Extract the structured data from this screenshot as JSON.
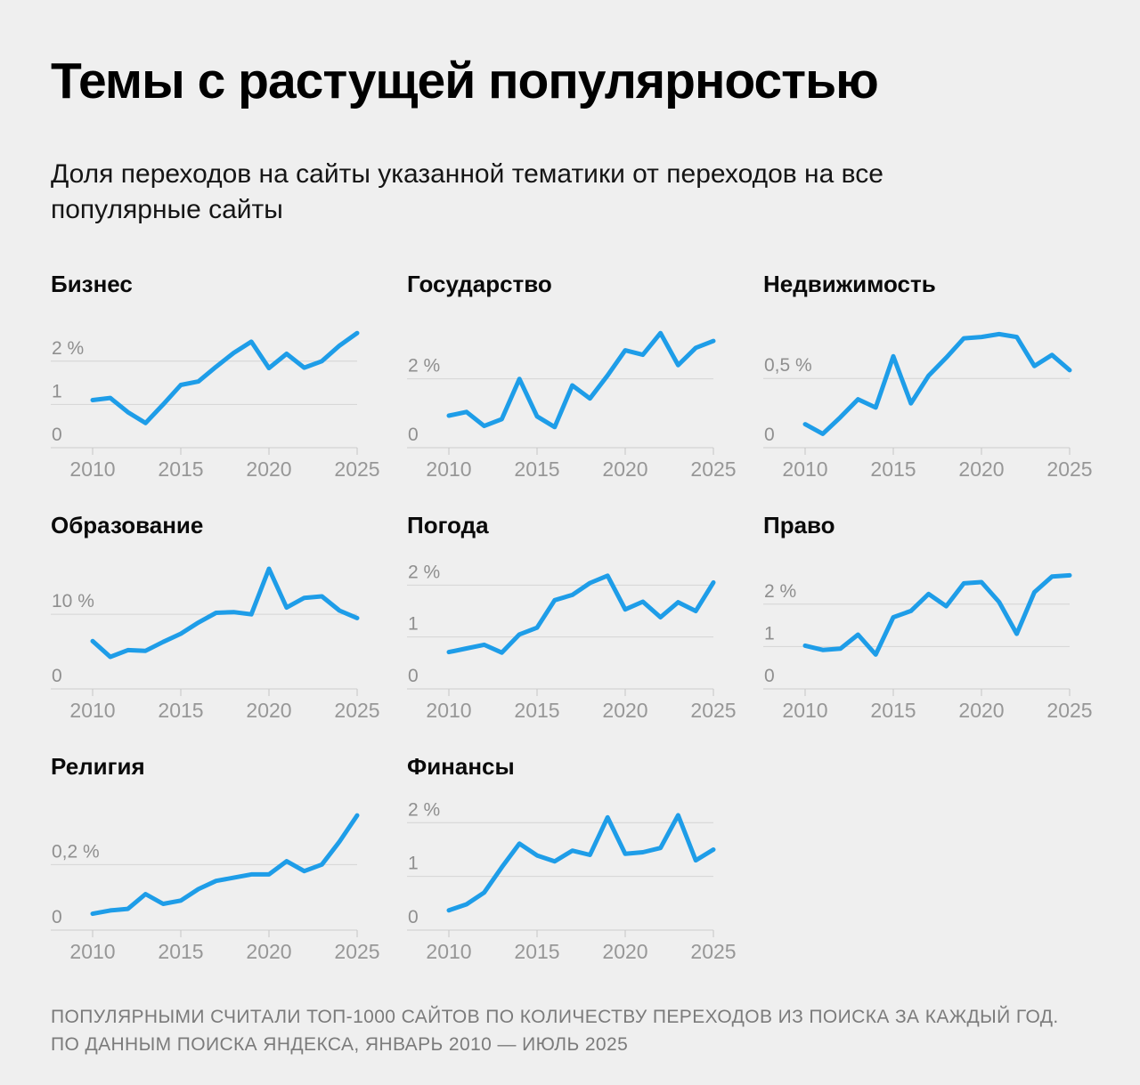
{
  "header": {
    "title": "Темы с растущей популярностью",
    "subtitle": "Доля переходов на сайты указанной тематики от переходов на все популярные сайты"
  },
  "footer": {
    "note": "ПОПУЛЯРНЫМИ СЧИТАЛИ ТОП-1000 САЙТОВ ПО КОЛИЧЕСТВУ ПЕРЕХОДОВ ИЗ ПОИСКА ЗА КАЖДЫЙ ГОД. ПО ДАННЫМ ПОИСКА ЯНДЕКСА, ЯНВАРЬ 2010 — ИЮЛЬ 2025"
  },
  "colors": {
    "background": "#efefef",
    "line": "#1e9de8",
    "grid": "#d4d4d4",
    "axis_label": "#8f8f8f",
    "footer_text": "#7b7b7b"
  },
  "chart_data": [
    {
      "type": "line",
      "title": "Бизнес",
      "unit": "%",
      "x": [
        2010,
        2011,
        2012,
        2013,
        2014,
        2015,
        2016,
        2017,
        2018,
        2019,
        2020,
        2021,
        2022,
        2023,
        2024,
        2025
      ],
      "values": [
        1.1,
        1.15,
        0.82,
        0.57,
        1.0,
        1.45,
        1.53,
        1.87,
        2.19,
        2.45,
        1.84,
        2.17,
        1.85,
        2.0,
        2.36,
        2.65
      ],
      "yticks": [
        {
          "value": 0,
          "label": "0"
        },
        {
          "value": 1,
          "label": "1"
        },
        {
          "value": 2,
          "label": "2 %"
        }
      ],
      "xticks": [
        2010,
        2015,
        2020,
        2025
      ],
      "ylim": [
        0,
        2.88
      ],
      "grid": true,
      "legend": false
    },
    {
      "type": "line",
      "title": "Государство",
      "unit": "%",
      "x": [
        2010,
        2011,
        2012,
        2013,
        2014,
        2015,
        2016,
        2017,
        2018,
        2019,
        2020,
        2021,
        2022,
        2023,
        2024,
        2025
      ],
      "values": [
        0.93,
        1.04,
        0.63,
        0.83,
        2.0,
        0.91,
        0.6,
        1.81,
        1.43,
        2.1,
        2.83,
        2.7,
        3.33,
        2.4,
        2.9,
        3.1
      ],
      "yticks": [
        {
          "value": 0,
          "label": "0"
        },
        {
          "value": 2,
          "label": "2 %"
        }
      ],
      "xticks": [
        2010,
        2015,
        2020,
        2025
      ],
      "ylim": [
        0,
        3.62
      ],
      "grid": true,
      "legend": false
    },
    {
      "type": "line",
      "title": "Недвижимость",
      "unit": "%",
      "x": [
        2010,
        2011,
        2012,
        2013,
        2014,
        2015,
        2016,
        2017,
        2018,
        2019,
        2020,
        2021,
        2022,
        2023,
        2024,
        2025
      ],
      "values": [
        0.17,
        0.1,
        0.22,
        0.35,
        0.29,
        0.66,
        0.32,
        0.52,
        0.65,
        0.79,
        0.8,
        0.82,
        0.8,
        0.59,
        0.67,
        0.56
      ],
      "yticks": [
        {
          "value": 0,
          "label": "0"
        },
        {
          "value": 0.5,
          "label": "0,5 %"
        }
      ],
      "xticks": [
        2010,
        2015,
        2020,
        2025
      ],
      "ylim": [
        0,
        0.9
      ],
      "grid": true,
      "legend": false
    },
    {
      "type": "line",
      "title": "Образование",
      "unit": "%",
      "x": [
        2010,
        2011,
        2012,
        2013,
        2014,
        2015,
        2016,
        2017,
        2018,
        2019,
        2020,
        2021,
        2022,
        2023,
        2024,
        2025
      ],
      "values": [
        6.4,
        4.3,
        5.2,
        5.1,
        6.3,
        7.4,
        8.9,
        10.2,
        10.3,
        10.0,
        16.1,
        10.9,
        12.2,
        12.4,
        10.5,
        9.5
      ],
      "yticks": [
        {
          "value": 0,
          "label": "0"
        },
        {
          "value": 10,
          "label": "10 %"
        }
      ],
      "xticks": [
        2010,
        2015,
        2020,
        2025
      ],
      "ylim": [
        0,
        16.7
      ],
      "grid": true,
      "legend": false
    },
    {
      "type": "line",
      "title": "Погода",
      "unit": "%",
      "x": [
        2010,
        2011,
        2012,
        2013,
        2014,
        2015,
        2016,
        2017,
        2018,
        2019,
        2020,
        2021,
        2022,
        2023,
        2024,
        2025
      ],
      "values": [
        0.71,
        0.78,
        0.85,
        0.7,
        1.05,
        1.18,
        1.71,
        1.81,
        2.04,
        2.18,
        1.53,
        1.68,
        1.38,
        1.67,
        1.5,
        2.05
      ],
      "yticks": [
        {
          "value": 0,
          "label": "0"
        },
        {
          "value": 1,
          "label": "1"
        },
        {
          "value": 2,
          "label": "2 %"
        }
      ],
      "xticks": [
        2010,
        2015,
        2020,
        2025
      ],
      "ylim": [
        0,
        2.4
      ],
      "grid": true,
      "legend": false
    },
    {
      "type": "line",
      "title": "Право",
      "unit": "%",
      "x": [
        2010,
        2011,
        2012,
        2013,
        2014,
        2015,
        2016,
        2017,
        2018,
        2019,
        2020,
        2021,
        2022,
        2023,
        2024,
        2025
      ],
      "values": [
        1.02,
        0.92,
        0.95,
        1.28,
        0.81,
        1.69,
        1.84,
        2.24,
        1.95,
        2.49,
        2.52,
        2.05,
        1.3,
        2.28,
        2.65,
        2.68
      ],
      "yticks": [
        {
          "value": 0,
          "label": "0"
        },
        {
          "value": 1,
          "label": "1"
        },
        {
          "value": 2,
          "label": "2 %"
        }
      ],
      "xticks": [
        2010,
        2015,
        2020,
        2025
      ],
      "ylim": [
        0,
        2.94
      ],
      "grid": true,
      "legend": false
    },
    {
      "type": "line",
      "title": "Религия",
      "unit": "%",
      "x": [
        2010,
        2011,
        2012,
        2013,
        2014,
        2015,
        2016,
        2017,
        2018,
        2019,
        2020,
        2021,
        2022,
        2023,
        2024,
        2025
      ],
      "values": [
        0.05,
        0.06,
        0.065,
        0.11,
        0.08,
        0.09,
        0.125,
        0.15,
        0.16,
        0.17,
        0.17,
        0.21,
        0.18,
        0.2,
        0.27,
        0.35
      ],
      "yticks": [
        {
          "value": 0,
          "label": "0"
        },
        {
          "value": 0.2,
          "label": "0,2 %"
        }
      ],
      "xticks": [
        2010,
        2015,
        2020,
        2025
      ],
      "ylim": [
        0,
        0.38
      ],
      "grid": true,
      "legend": false
    },
    {
      "type": "line",
      "title": "Финансы",
      "unit": "%",
      "x": [
        2010,
        2011,
        2012,
        2013,
        2014,
        2015,
        2016,
        2017,
        2018,
        2019,
        2020,
        2021,
        2022,
        2023,
        2024,
        2025
      ],
      "values": [
        0.37,
        0.48,
        0.7,
        1.17,
        1.61,
        1.39,
        1.28,
        1.48,
        1.4,
        2.1,
        1.42,
        1.45,
        1.53,
        2.14,
        1.3,
        1.5
      ],
      "yticks": [
        {
          "value": 0,
          "label": "0"
        },
        {
          "value": 1,
          "label": "1"
        },
        {
          "value": 2,
          "label": "2 %"
        }
      ],
      "xticks": [
        2010,
        2015,
        2020,
        2025
      ],
      "ylim": [
        0,
        2.32
      ],
      "grid": true,
      "legend": false
    }
  ]
}
